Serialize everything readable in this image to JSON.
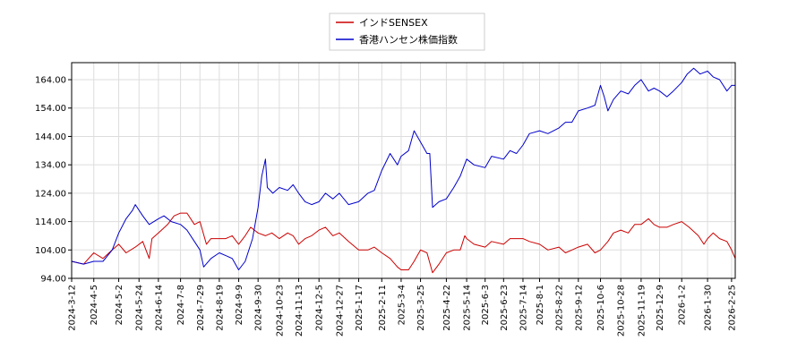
{
  "chart_data": {
    "type": "line",
    "title": "",
    "xlabel": "",
    "ylabel": "",
    "ylim": [
      94,
      170
    ],
    "yticks": [
      94,
      104,
      114,
      124,
      134,
      144,
      154,
      164
    ],
    "ytick_labels": [
      "94.00",
      "104.00",
      "114.00",
      "124.00",
      "134.00",
      "144.00",
      "154.00",
      "164.00"
    ],
    "xlim": [
      "2024-03-12",
      "2026-03-01"
    ],
    "xticks": [
      "2024-3-12",
      "2024-4-5",
      "2024-5-2",
      "2024-5-24",
      "2024-6-14",
      "2024-7-8",
      "2024-7-29",
      "2024-8-19",
      "2024-9-9",
      "2024-9-30",
      "2024-10-23",
      "2024-11-13",
      "2024-12-5",
      "2024-12-27",
      "2025-1-17",
      "2025-2-11",
      "2025-3-4",
      "2025-3-25",
      "2025-4-22",
      "2025-5-14",
      "2025-6-3",
      "2025-6-23",
      "2025-7-14",
      "2025-8-1",
      "2025-8-22",
      "2025-9-12",
      "2025-10-6",
      "2025-10-28",
      "2025-11-19",
      "2025-12-9",
      "2026-1-2",
      "2026-1-30",
      "2026-2-25"
    ],
    "grid": true,
    "legend_position": "top",
    "series": [
      {
        "name": "インドSENSEX",
        "color": "#cc0000",
        "points": [
          [
            "2024-03-12",
            100
          ],
          [
            "2024-03-25",
            99
          ],
          [
            "2024-04-05",
            103
          ],
          [
            "2024-04-15",
            101
          ],
          [
            "2024-04-25",
            104
          ],
          [
            "2024-05-02",
            106
          ],
          [
            "2024-05-10",
            103
          ],
          [
            "2024-05-20",
            105
          ],
          [
            "2024-05-28",
            107
          ],
          [
            "2024-06-04",
            101
          ],
          [
            "2024-06-07",
            108
          ],
          [
            "2024-06-14",
            110
          ],
          [
            "2024-06-24",
            113
          ],
          [
            "2024-07-01",
            116
          ],
          [
            "2024-07-08",
            117
          ],
          [
            "2024-07-15",
            117
          ],
          [
            "2024-07-23",
            113
          ],
          [
            "2024-07-29",
            114
          ],
          [
            "2024-08-05",
            106
          ],
          [
            "2024-08-10",
            108
          ],
          [
            "2024-08-19",
            108
          ],
          [
            "2024-08-26",
            108
          ],
          [
            "2024-09-02",
            109
          ],
          [
            "2024-09-09",
            106
          ],
          [
            "2024-09-16",
            109
          ],
          [
            "2024-09-22",
            112
          ],
          [
            "2024-09-30",
            110
          ],
          [
            "2024-10-08",
            109
          ],
          [
            "2024-10-15",
            110
          ],
          [
            "2024-10-23",
            108
          ],
          [
            "2024-11-01",
            110
          ],
          [
            "2024-11-07",
            109
          ],
          [
            "2024-11-13",
            106
          ],
          [
            "2024-11-20",
            108
          ],
          [
            "2024-11-27",
            109
          ],
          [
            "2024-12-05",
            111
          ],
          [
            "2024-12-12",
            112
          ],
          [
            "2024-12-20",
            109
          ],
          [
            "2024-12-27",
            110
          ],
          [
            "2025-01-06",
            107
          ],
          [
            "2025-01-17",
            104
          ],
          [
            "2025-01-27",
            104
          ],
          [
            "2025-02-03",
            105
          ],
          [
            "2025-02-11",
            103
          ],
          [
            "2025-02-20",
            101
          ],
          [
            "2025-02-28",
            98
          ],
          [
            "2025-03-04",
            97
          ],
          [
            "2025-03-12",
            97
          ],
          [
            "2025-03-18",
            100
          ],
          [
            "2025-03-25",
            104
          ],
          [
            "2025-04-01",
            103
          ],
          [
            "2025-04-07",
            96
          ],
          [
            "2025-04-14",
            99
          ],
          [
            "2025-04-22",
            103
          ],
          [
            "2025-04-30",
            104
          ],
          [
            "2025-05-07",
            104
          ],
          [
            "2025-05-12",
            109
          ],
          [
            "2025-05-14",
            108
          ],
          [
            "2025-05-22",
            106
          ],
          [
            "2025-06-03",
            105
          ],
          [
            "2025-06-10",
            107
          ],
          [
            "2025-06-23",
            106
          ],
          [
            "2025-06-30",
            108
          ],
          [
            "2025-07-07",
            108
          ],
          [
            "2025-07-14",
            108
          ],
          [
            "2025-07-21",
            107
          ],
          [
            "2025-08-01",
            106
          ],
          [
            "2025-08-10",
            104
          ],
          [
            "2025-08-22",
            105
          ],
          [
            "2025-08-29",
            103
          ],
          [
            "2025-09-05",
            104
          ],
          [
            "2025-09-12",
            105
          ],
          [
            "2025-09-22",
            106
          ],
          [
            "2025-09-30",
            103
          ],
          [
            "2025-10-06",
            104
          ],
          [
            "2025-10-14",
            107
          ],
          [
            "2025-10-20",
            110
          ],
          [
            "2025-10-28",
            111
          ],
          [
            "2025-11-05",
            110
          ],
          [
            "2025-11-12",
            113
          ],
          [
            "2025-11-19",
            113
          ],
          [
            "2025-11-27",
            115
          ],
          [
            "2025-12-03",
            113
          ],
          [
            "2025-12-09",
            112
          ],
          [
            "2025-12-17",
            112
          ],
          [
            "2025-12-24",
            113
          ],
          [
            "2026-01-02",
            114
          ],
          [
            "2026-01-10",
            112
          ],
          [
            "2026-01-20",
            109
          ],
          [
            "2026-01-26",
            106
          ],
          [
            "2026-01-30",
            108
          ],
          [
            "2026-02-05",
            110
          ],
          [
            "2026-02-12",
            108
          ],
          [
            "2026-02-20",
            107
          ],
          [
            "2026-02-25",
            104
          ],
          [
            "2026-03-01",
            101
          ]
        ]
      },
      {
        "name": "香港ハンセン株価指数",
        "color": "#0000cc",
        "points": [
          [
            "2024-03-12",
            100
          ],
          [
            "2024-03-25",
            99
          ],
          [
            "2024-04-05",
            100
          ],
          [
            "2024-04-15",
            100
          ],
          [
            "2024-04-25",
            104
          ],
          [
            "2024-05-02",
            110
          ],
          [
            "2024-05-10",
            115
          ],
          [
            "2024-05-17",
            118
          ],
          [
            "2024-05-20",
            120
          ],
          [
            "2024-05-28",
            116
          ],
          [
            "2024-06-04",
            113
          ],
          [
            "2024-06-14",
            115
          ],
          [
            "2024-06-20",
            116
          ],
          [
            "2024-06-28",
            114
          ],
          [
            "2024-07-08",
            113
          ],
          [
            "2024-07-15",
            111
          ],
          [
            "2024-07-23",
            107
          ],
          [
            "2024-07-29",
            104
          ],
          [
            "2024-08-02",
            98
          ],
          [
            "2024-08-10",
            101
          ],
          [
            "2024-08-19",
            103
          ],
          [
            "2024-08-26",
            102
          ],
          [
            "2024-09-02",
            101
          ],
          [
            "2024-09-09",
            97
          ],
          [
            "2024-09-16",
            100
          ],
          [
            "2024-09-24",
            108
          ],
          [
            "2024-09-30",
            119
          ],
          [
            "2024-10-04",
            130
          ],
          [
            "2024-10-08",
            136
          ],
          [
            "2024-10-10",
            126
          ],
          [
            "2024-10-16",
            124
          ],
          [
            "2024-10-23",
            126
          ],
          [
            "2024-11-01",
            125
          ],
          [
            "2024-11-07",
            127
          ],
          [
            "2024-11-13",
            124
          ],
          [
            "2024-11-20",
            121
          ],
          [
            "2024-11-27",
            120
          ],
          [
            "2024-12-05",
            121
          ],
          [
            "2024-12-12",
            124
          ],
          [
            "2024-12-20",
            122
          ],
          [
            "2024-12-27",
            124
          ],
          [
            "2025-01-06",
            120
          ],
          [
            "2025-01-17",
            121
          ],
          [
            "2025-01-27",
            124
          ],
          [
            "2025-02-03",
            125
          ],
          [
            "2025-02-11",
            132
          ],
          [
            "2025-02-20",
            138
          ],
          [
            "2025-02-28",
            134
          ],
          [
            "2025-03-04",
            137
          ],
          [
            "2025-03-12",
            139
          ],
          [
            "2025-03-18",
            146
          ],
          [
            "2025-03-25",
            142
          ],
          [
            "2025-04-01",
            138
          ],
          [
            "2025-04-04",
            138
          ],
          [
            "2025-04-07",
            119
          ],
          [
            "2025-04-14",
            121
          ],
          [
            "2025-04-22",
            122
          ],
          [
            "2025-04-30",
            126
          ],
          [
            "2025-05-07",
            130
          ],
          [
            "2025-05-14",
            136
          ],
          [
            "2025-05-22",
            134
          ],
          [
            "2025-06-03",
            133
          ],
          [
            "2025-06-10",
            137
          ],
          [
            "2025-06-23",
            136
          ],
          [
            "2025-06-30",
            139
          ],
          [
            "2025-07-07",
            138
          ],
          [
            "2025-07-14",
            141
          ],
          [
            "2025-07-21",
            145
          ],
          [
            "2025-08-01",
            146
          ],
          [
            "2025-08-10",
            145
          ],
          [
            "2025-08-22",
            147
          ],
          [
            "2025-08-29",
            149
          ],
          [
            "2025-09-05",
            149
          ],
          [
            "2025-09-12",
            153
          ],
          [
            "2025-09-22",
            154
          ],
          [
            "2025-09-30",
            155
          ],
          [
            "2025-10-06",
            162
          ],
          [
            "2025-10-10",
            158
          ],
          [
            "2025-10-14",
            153
          ],
          [
            "2025-10-20",
            157
          ],
          [
            "2025-10-28",
            160
          ],
          [
            "2025-11-05",
            159
          ],
          [
            "2025-11-12",
            162
          ],
          [
            "2025-11-19",
            164
          ],
          [
            "2025-11-27",
            160
          ],
          [
            "2025-12-03",
            161
          ],
          [
            "2025-12-09",
            160
          ],
          [
            "2025-12-17",
            158
          ],
          [
            "2025-12-24",
            160
          ],
          [
            "2026-01-02",
            163
          ],
          [
            "2026-01-08",
            166
          ],
          [
            "2026-01-15",
            168
          ],
          [
            "2026-01-22",
            166
          ],
          [
            "2026-01-30",
            167
          ],
          [
            "2026-02-05",
            165
          ],
          [
            "2026-02-12",
            164
          ],
          [
            "2026-02-20",
            160
          ],
          [
            "2026-02-25",
            162
          ],
          [
            "2026-03-01",
            162
          ]
        ]
      }
    ]
  }
}
